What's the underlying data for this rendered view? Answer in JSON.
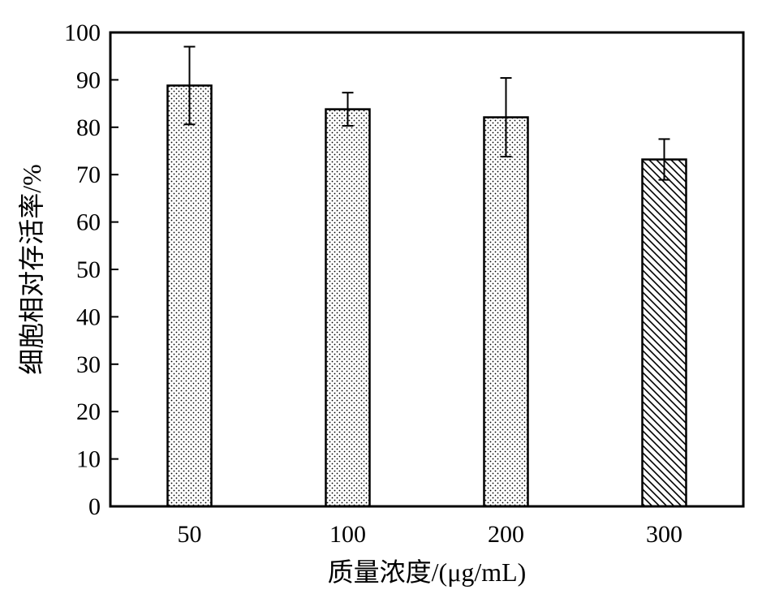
{
  "chart_data": {
    "type": "bar",
    "categories": [
      "50",
      "100",
      "200",
      "300"
    ],
    "values": [
      88.8,
      83.8,
      82.1,
      73.2
    ],
    "errors": [
      8.2,
      3.5,
      8.3,
      4.3
    ],
    "patterns": [
      "dots",
      "dots",
      "dots",
      "diagonal-hatch"
    ],
    "xlabel": "质量浓度/(μg/mL)",
    "ylabel": "细胞相对存活率/%",
    "ylim": [
      0,
      100
    ],
    "yticks": [
      "0",
      "10",
      "20",
      "30",
      "40",
      "50",
      "60",
      "70",
      "80",
      "90",
      "100"
    ],
    "grid": false,
    "legend": "none",
    "colors": {
      "axis": "#000000",
      "bar_fill": "#ffffff",
      "pattern": "#000000"
    }
  }
}
